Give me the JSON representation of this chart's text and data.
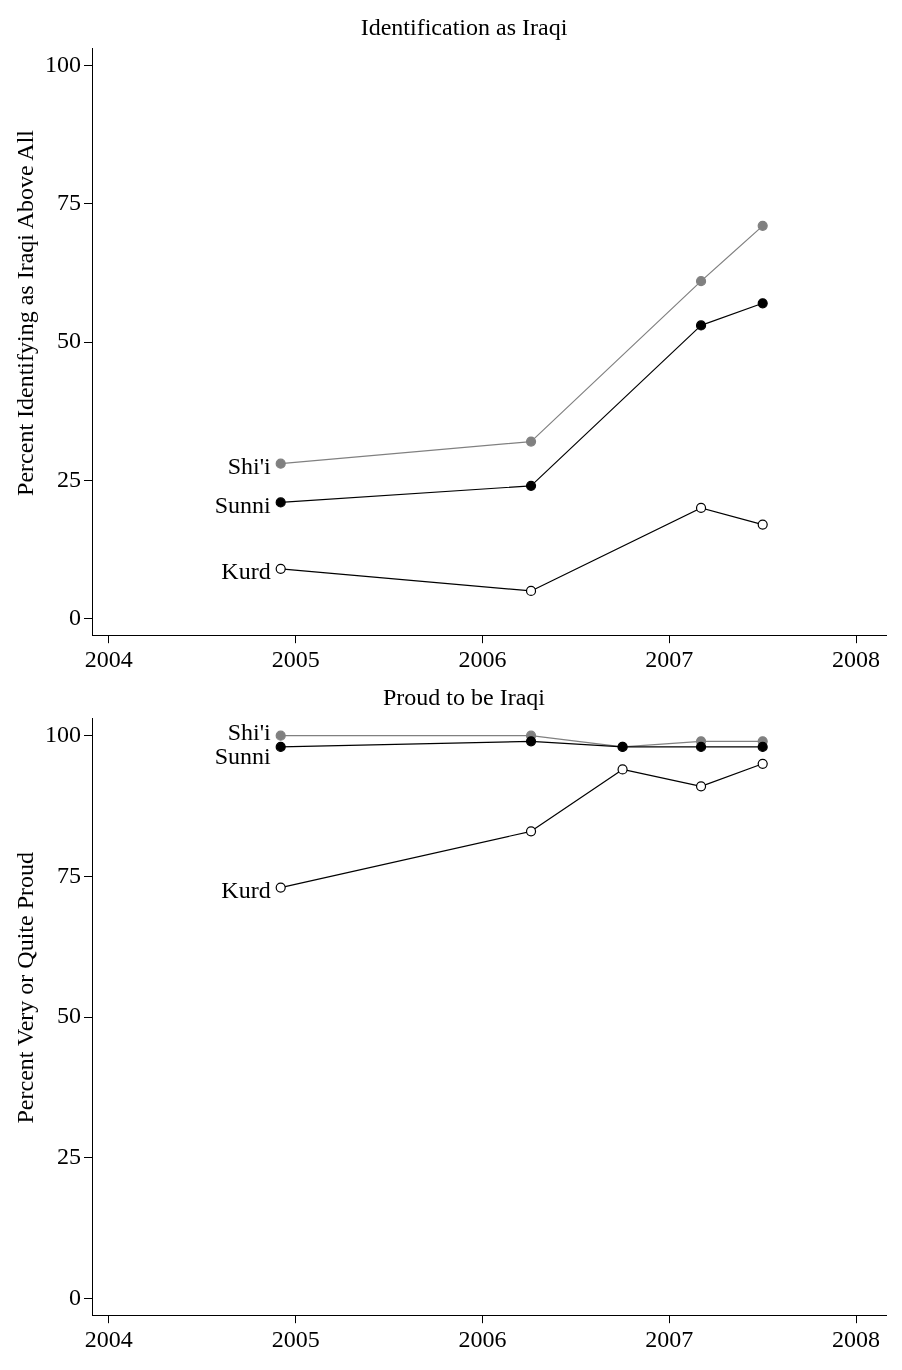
{
  "chart_data": [
    {
      "type": "line",
      "title": "Identification as Iraqi",
      "ylabel": "Percent Identifying as Iraqi Above All",
      "marker": "circle",
      "line_style": "solid",
      "grid": false,
      "legend": false,
      "xlim": [
        2003.91,
        2008.16
      ],
      "xticks": [
        2004,
        2005,
        2006,
        2007,
        2008
      ],
      "ylim": [
        -3,
        103
      ],
      "yticks": [
        0,
        25,
        50,
        75,
        100
      ],
      "series": [
        {
          "name": "Shi'i",
          "color": "#808080",
          "x": [
            2004.92,
            2006.26,
            2007.17,
            2007.5
          ],
          "values": [
            28,
            32,
            61,
            71
          ]
        },
        {
          "name": "Sunni",
          "color": "#000000",
          "x": [
            2004.92,
            2006.26,
            2007.17,
            2007.5
          ],
          "values": [
            21,
            24,
            53,
            57
          ]
        },
        {
          "name": "Kurd",
          "color": "#000000",
          "x": [
            2004.92,
            2006.26,
            2007.17,
            2007.5
          ],
          "values": [
            9,
            5,
            20,
            17
          ]
        }
      ]
    },
    {
      "type": "line",
      "title": "Proud to be Iraqi",
      "ylabel": "Percent Very or Quite Proud",
      "marker": "circle",
      "line_style": "solid",
      "grid": false,
      "legend": false,
      "xlim": [
        2003.91,
        2008.16
      ],
      "xticks": [
        2004,
        2005,
        2006,
        2007,
        2008
      ],
      "ylim": [
        -3,
        103
      ],
      "yticks": [
        0,
        25,
        50,
        75,
        100
      ],
      "series": [
        {
          "name": "Shi'i",
          "color": "#808080",
          "x": [
            2004.92,
            2006.26,
            2006.75,
            2007.17,
            2007.5
          ],
          "values": [
            100,
            100,
            98,
            99,
            99
          ]
        },
        {
          "name": "Sunni",
          "color": "#000000",
          "x": [
            2004.92,
            2006.26,
            2006.75,
            2007.17,
            2007.5
          ],
          "values": [
            98,
            99,
            98,
            98,
            98
          ]
        },
        {
          "name": "Kurd",
          "color": "#000000",
          "x": [
            2004.92,
            2006.26,
            2006.75,
            2007.17,
            2007.5
          ],
          "values": [
            73,
            83,
            94,
            91,
            95
          ]
        }
      ]
    }
  ]
}
